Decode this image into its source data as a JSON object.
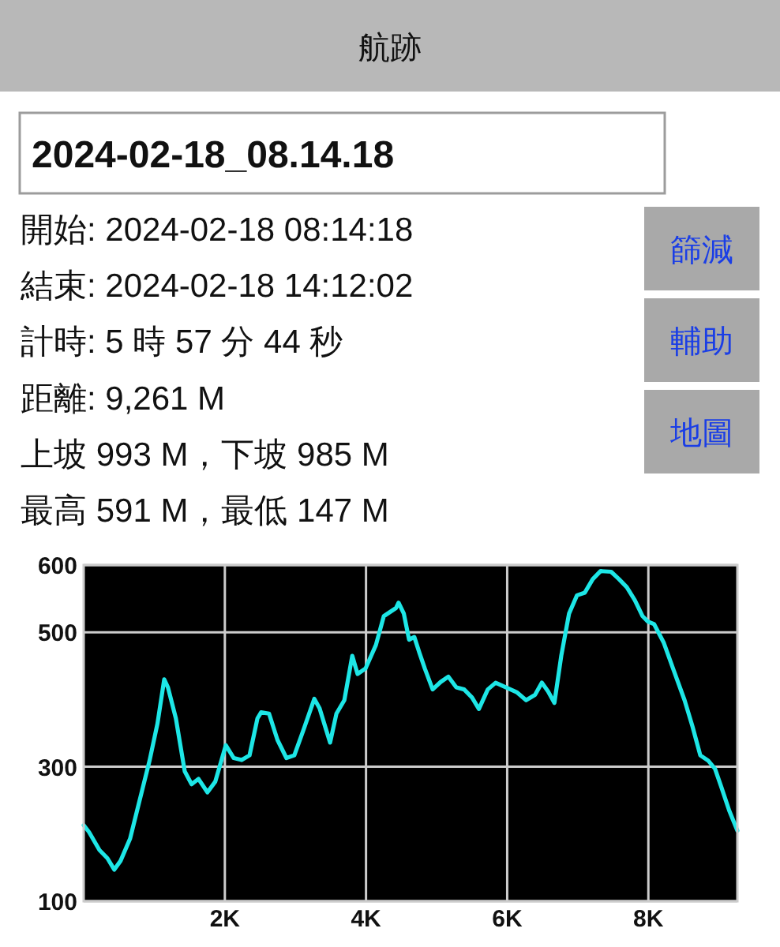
{
  "chart_data": {
    "type": "line",
    "title": "航跡",
    "subtitle": "2024-02-18_08.14.18",
    "annotations": [
      "開始: 2024-02-18 08:14:18",
      "結束: 2024-02-18 14:12:02",
      "計時: 5 時 57 分 44 秒",
      "距離: 9,261 M",
      "上坡 993 M，下坡 985 M",
      "最高 591 M，最低 147 M",
      "篩減",
      "輔助",
      "地圖"
    ],
    "x": [
      0,
      75,
      224,
      336,
      433,
      522,
      657,
      783,
      933,
      1045,
      1141,
      1194,
      1306,
      1432,
      1529,
      1626,
      1753,
      1865,
      2014,
      2126,
      2238,
      2350,
      2462,
      2514,
      2626,
      2745,
      2872,
      2984,
      3118,
      3267,
      3342,
      3432,
      3491,
      3581,
      3693,
      3805,
      3880,
      3992,
      4140,
      4252,
      4424,
      4461,
      4535,
      4610,
      4684,
      4758,
      4833,
      4944,
      5056,
      5167,
      5279,
      5390,
      5502,
      5599,
      5725,
      5836,
      5985,
      6134,
      6268,
      6394,
      6491,
      6580,
      6669,
      6766,
      6877,
      6989,
      7100,
      7212,
      7323,
      7472,
      7584,
      7695,
      7807,
      7918,
      7993,
      8082,
      8216,
      8364,
      8513,
      8625,
      8736,
      8848,
      8944,
      9033,
      9145,
      9261
    ],
    "series": [
      {
        "color": "#1de6e6",
        "values": [
          213,
          203,
          176,
          164,
          147,
          160,
          193,
          246,
          309,
          364,
          430,
          418,
          372,
          293,
          274,
          282,
          262,
          278,
          332,
          313,
          310,
          317,
          372,
          381,
          379,
          340,
          313,
          317,
          356,
          401,
          387,
          356,
          336,
          379,
          399,
          465,
          438,
          446,
          481,
          524,
          536,
          544,
          528,
          489,
          493,
          469,
          446,
          415,
          426,
          434,
          418,
          415,
          403,
          386,
          415,
          425,
          418,
          411,
          399,
          407,
          425,
          412,
          395,
          465,
          528,
          555,
          559,
          579,
          591,
          590,
          579,
          567,
          548,
          524,
          516,
          512,
          485,
          442,
          399,
          360,
          317,
          309,
          297,
          270,
          235,
          205
        ]
      }
    ],
    "xlim": [
      0,
      9261
    ],
    "ylim": [
      100,
      600
    ],
    "xticks": [
      {
        "value": 2000,
        "label": "2K"
      },
      {
        "value": 4000,
        "label": "4K"
      },
      {
        "value": 6000,
        "label": "6K"
      },
      {
        "value": 8000,
        "label": "8K"
      }
    ],
    "yticks": [
      100,
      300,
      500,
      600
    ],
    "grid": true
  }
}
